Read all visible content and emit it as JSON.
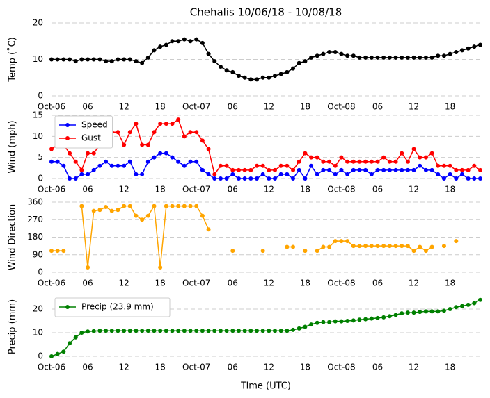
{
  "chart_data": [
    {
      "type": "line",
      "title": "Chehalis 10/06/18 - 10/08/18",
      "ylabel": "Temp (˚C)",
      "x": [
        0,
        1,
        2,
        3,
        4,
        5,
        6,
        7,
        8,
        9,
        10,
        11,
        12,
        13,
        14,
        15,
        16,
        17,
        18,
        19,
        20,
        21,
        22,
        23,
        24,
        25,
        26,
        27,
        28,
        29,
        30,
        31,
        32,
        33,
        34,
        35,
        36,
        37,
        38,
        39,
        40,
        41,
        42,
        43,
        44,
        45,
        46,
        47,
        48,
        49,
        50,
        51,
        52,
        53,
        54,
        55,
        56,
        57,
        58,
        59,
        60,
        61,
        62,
        63,
        64,
        65,
        66,
        67,
        68,
        69,
        70,
        71
      ],
      "series": [
        {
          "color": "#000000",
          "values": [
            10,
            10,
            10,
            10,
            9.5,
            10,
            10,
            10,
            10,
            9.5,
            9.5,
            10,
            10,
            10,
            9.5,
            9,
            10.5,
            12.5,
            13.5,
            14,
            15,
            15,
            15.5,
            15,
            15.5,
            14.5,
            11.5,
            9.5,
            8,
            7,
            6.5,
            5.5,
            5,
            4.5,
            4.5,
            5,
            5,
            5.5,
            6,
            6.5,
            7.5,
            9,
            9.5,
            10.5,
            11,
            11.5,
            12,
            12,
            11.5,
            11,
            11,
            10.5,
            10.5,
            10.5,
            10.5,
            10.5,
            10.5,
            10.5,
            10.5,
            10.5,
            10.5,
            10.5,
            10.5,
            10.5,
            11,
            11,
            11.5,
            12,
            12.5,
            13,
            13.5,
            14
          ]
        }
      ],
      "xlim": [
        0,
        71
      ],
      "ylim": [
        0,
        20
      ],
      "yticks": [
        0,
        10,
        20
      ],
      "grid": true,
      "xticks": [
        {
          "value": 0,
          "label": "Oct-06"
        },
        {
          "value": 6,
          "label": "06"
        },
        {
          "value": 12,
          "label": "12"
        },
        {
          "value": 18,
          "label": "18"
        },
        {
          "value": 24,
          "label": "Oct-07"
        },
        {
          "value": 30,
          "label": "06"
        },
        {
          "value": 36,
          "label": "12"
        },
        {
          "value": 42,
          "label": "18"
        },
        {
          "value": 48,
          "label": "Oct-08"
        },
        {
          "value": 54,
          "label": "06"
        },
        {
          "value": 60,
          "label": "12"
        },
        {
          "value": 66,
          "label": "18"
        }
      ]
    },
    {
      "type": "line",
      "ylabel": "Wind (mph)",
      "legend": "upper left",
      "x": [
        0,
        1,
        2,
        3,
        4,
        5,
        6,
        7,
        8,
        9,
        10,
        11,
        12,
        13,
        14,
        15,
        16,
        17,
        18,
        19,
        20,
        21,
        22,
        23,
        24,
        25,
        26,
        27,
        28,
        29,
        30,
        31,
        32,
        33,
        34,
        35,
        36,
        37,
        38,
        39,
        40,
        41,
        42,
        43,
        44,
        45,
        46,
        47,
        48,
        49,
        50,
        51,
        52,
        53,
        54,
        55,
        56,
        57,
        58,
        59,
        60,
        61,
        62,
        63,
        64,
        65,
        66,
        67,
        68,
        69,
        70,
        71
      ],
      "series": [
        {
          "name": "Speed",
          "color": "#0000ff",
          "values": [
            4,
            4,
            3,
            0,
            0,
            1,
            1,
            2,
            3,
            4,
            3,
            3,
            3,
            4,
            1,
            1,
            4,
            5,
            6,
            6,
            5,
            4,
            3,
            4,
            4,
            2,
            1,
            0,
            0,
            0,
            1,
            0,
            0,
            0,
            0,
            1,
            0,
            0,
            1,
            1,
            0,
            2,
            0,
            3,
            1,
            2,
            2,
            1,
            2,
            1,
            2,
            2,
            2,
            1,
            2,
            2,
            2,
            2,
            2,
            2,
            2,
            3,
            2,
            2,
            1,
            0,
            1,
            0,
            1,
            0,
            0,
            0
          ]
        },
        {
          "name": "Gust",
          "color": "#ff0000",
          "values": [
            7,
            8,
            8,
            6,
            4,
            2,
            6,
            6,
            8,
            10,
            11,
            11,
            8,
            11,
            13,
            8,
            8,
            11,
            13,
            13,
            13,
            14,
            10,
            11,
            11,
            9,
            7,
            1,
            3,
            3,
            2,
            2,
            2,
            2,
            3,
            3,
            2,
            2,
            3,
            3,
            2,
            4,
            6,
            5,
            5,
            4,
            4,
            3,
            5,
            4,
            4,
            4,
            4,
            4,
            4,
            5,
            4,
            4,
            6,
            4,
            7,
            5,
            5,
            6,
            3,
            3,
            3,
            2,
            2,
            2,
            3,
            2
          ]
        }
      ],
      "xlim": [
        0,
        71
      ],
      "ylim": [
        0,
        15
      ],
      "yticks": [
        0,
        5,
        10,
        15
      ],
      "grid": true,
      "xticks": [
        {
          "value": 0,
          "label": "Oct-06"
        },
        {
          "value": 6,
          "label": "06"
        },
        {
          "value": 12,
          "label": "12"
        },
        {
          "value": 18,
          "label": "18"
        },
        {
          "value": 24,
          "label": "Oct-07"
        },
        {
          "value": 30,
          "label": "06"
        },
        {
          "value": 36,
          "label": "12"
        },
        {
          "value": 42,
          "label": "18"
        },
        {
          "value": 48,
          "label": "Oct-08"
        },
        {
          "value": 54,
          "label": "06"
        },
        {
          "value": 60,
          "label": "12"
        },
        {
          "value": 66,
          "label": "18"
        }
      ]
    },
    {
      "type": "line",
      "ylabel": "Wind Direction",
      "x": [
        0,
        1,
        2,
        3,
        4,
        5,
        6,
        7,
        8,
        9,
        10,
        11,
        12,
        13,
        14,
        15,
        16,
        17,
        18,
        19,
        20,
        21,
        22,
        23,
        24,
        25,
        26,
        27,
        28,
        29,
        30,
        31,
        32,
        33,
        34,
        35,
        36,
        37,
        38,
        39,
        40,
        41,
        42,
        43,
        44,
        45,
        46,
        47,
        48,
        49,
        50,
        51,
        52,
        53,
        54,
        55,
        56,
        57,
        58,
        59,
        60,
        61,
        62,
        63,
        64,
        65,
        66,
        67,
        68,
        69,
        70,
        71
      ],
      "series": [
        {
          "color": "#ffa500",
          "values": [
            110,
            110,
            110,
            null,
            null,
            340,
            25,
            315,
            320,
            335,
            315,
            320,
            340,
            340,
            290,
            270,
            290,
            340,
            25,
            340,
            340,
            340,
            340,
            340,
            340,
            290,
            220,
            null,
            null,
            null,
            110,
            null,
            null,
            null,
            null,
            110,
            null,
            null,
            null,
            130,
            130,
            null,
            110,
            null,
            110,
            130,
            130,
            160,
            160,
            160,
            135,
            135,
            135,
            135,
            135,
            135,
            135,
            135,
            135,
            135,
            110,
            130,
            110,
            130,
            null,
            135,
            null,
            160,
            null,
            null,
            null,
            null
          ]
        }
      ],
      "xlim": [
        0,
        71
      ],
      "ylim": [
        0,
        360
      ],
      "yticks": [
        0,
        90,
        180,
        270,
        360
      ],
      "grid": true,
      "xticks": [
        {
          "value": 0,
          "label": "Oct-06"
        },
        {
          "value": 6,
          "label": "06"
        },
        {
          "value": 12,
          "label": "12"
        },
        {
          "value": 18,
          "label": "18"
        },
        {
          "value": 24,
          "label": "Oct-07"
        },
        {
          "value": 30,
          "label": "06"
        },
        {
          "value": 36,
          "label": "12"
        },
        {
          "value": 42,
          "label": "18"
        },
        {
          "value": 48,
          "label": "Oct-08"
        },
        {
          "value": 54,
          "label": "06"
        },
        {
          "value": 60,
          "label": "12"
        },
        {
          "value": 66,
          "label": "18"
        }
      ]
    },
    {
      "type": "line",
      "ylabel": "Precip (mm)",
      "xlabel": "Time (UTC)",
      "legend": "upper left",
      "x": [
        0,
        1,
        2,
        3,
        4,
        5,
        6,
        7,
        8,
        9,
        10,
        11,
        12,
        13,
        14,
        15,
        16,
        17,
        18,
        19,
        20,
        21,
        22,
        23,
        24,
        25,
        26,
        27,
        28,
        29,
        30,
        31,
        32,
        33,
        34,
        35,
        36,
        37,
        38,
        39,
        40,
        41,
        42,
        43,
        44,
        45,
        46,
        47,
        48,
        49,
        50,
        51,
        52,
        53,
        54,
        55,
        56,
        57,
        58,
        59,
        60,
        61,
        62,
        63,
        64,
        65,
        66,
        67,
        68,
        69,
        70,
        71
      ],
      "series": [
        {
          "name": "Precip (23.9 mm)",
          "color": "#008000",
          "values": [
            0,
            1,
            2,
            5.5,
            8,
            10,
            10.5,
            10.7,
            10.8,
            10.8,
            10.8,
            10.8,
            10.8,
            10.8,
            10.8,
            10.8,
            10.8,
            10.8,
            10.8,
            10.8,
            10.8,
            10.8,
            10.8,
            10.8,
            10.8,
            10.8,
            10.8,
            10.8,
            10.8,
            10.8,
            10.8,
            10.8,
            10.8,
            10.8,
            10.8,
            10.8,
            10.8,
            10.8,
            10.8,
            10.8,
            11.2,
            11.8,
            12.5,
            13.5,
            14.2,
            14.5,
            14.5,
            14.8,
            14.8,
            15,
            15.2,
            15.5,
            15.7,
            16,
            16.2,
            16.5,
            17,
            17.5,
            18.2,
            18.5,
            18.5,
            18.8,
            19,
            19,
            19,
            19.3,
            20,
            20.8,
            21.3,
            21.8,
            22.5,
            23.9
          ]
        }
      ],
      "xlim": [
        0,
        71
      ],
      "ylim": [
        0,
        25
      ],
      "yticks": [
        0,
        10,
        20
      ],
      "grid": true,
      "xticks": [
        {
          "value": 0,
          "label": "Oct-06"
        },
        {
          "value": 6,
          "label": "06"
        },
        {
          "value": 12,
          "label": "12"
        },
        {
          "value": 18,
          "label": "18"
        },
        {
          "value": 24,
          "label": "Oct-07"
        },
        {
          "value": 30,
          "label": "06"
        },
        {
          "value": 36,
          "label": "12"
        },
        {
          "value": 42,
          "label": "18"
        },
        {
          "value": 48,
          "label": "Oct-08"
        },
        {
          "value": 54,
          "label": "06"
        },
        {
          "value": 60,
          "label": "12"
        },
        {
          "value": 66,
          "label": "18"
        }
      ]
    }
  ]
}
